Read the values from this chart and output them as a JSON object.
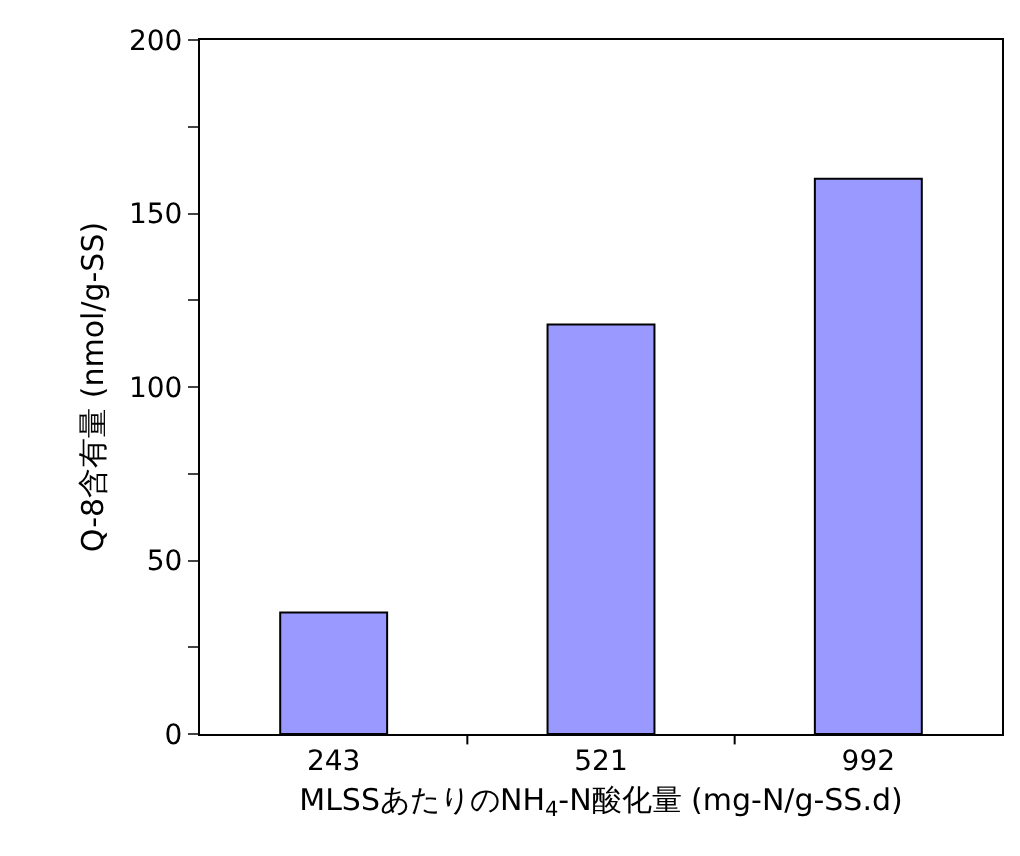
{
  "chart_data": {
    "type": "bar",
    "xlabel": "MLSSあたりのNH$_{4}$-N酸化量 (mg-N/g-SS.d)",
    "ylabel": "Q-8含有量 (nmol/g-SS)",
    "categories": [
      "243",
      "521",
      "992"
    ],
    "values": [
      35,
      118,
      160
    ],
    "color": "#9999ff",
    "ylim": [
      0,
      200
    ],
    "yticks": [
      0,
      {
        "value": 25,
        "label": null
      },
      50,
      {
        "value": 75,
        "label": null
      },
      100,
      {
        "value": 125,
        "label": null
      },
      150,
      {
        "value": 175,
        "label": null
      },
      200
    ]
  }
}
